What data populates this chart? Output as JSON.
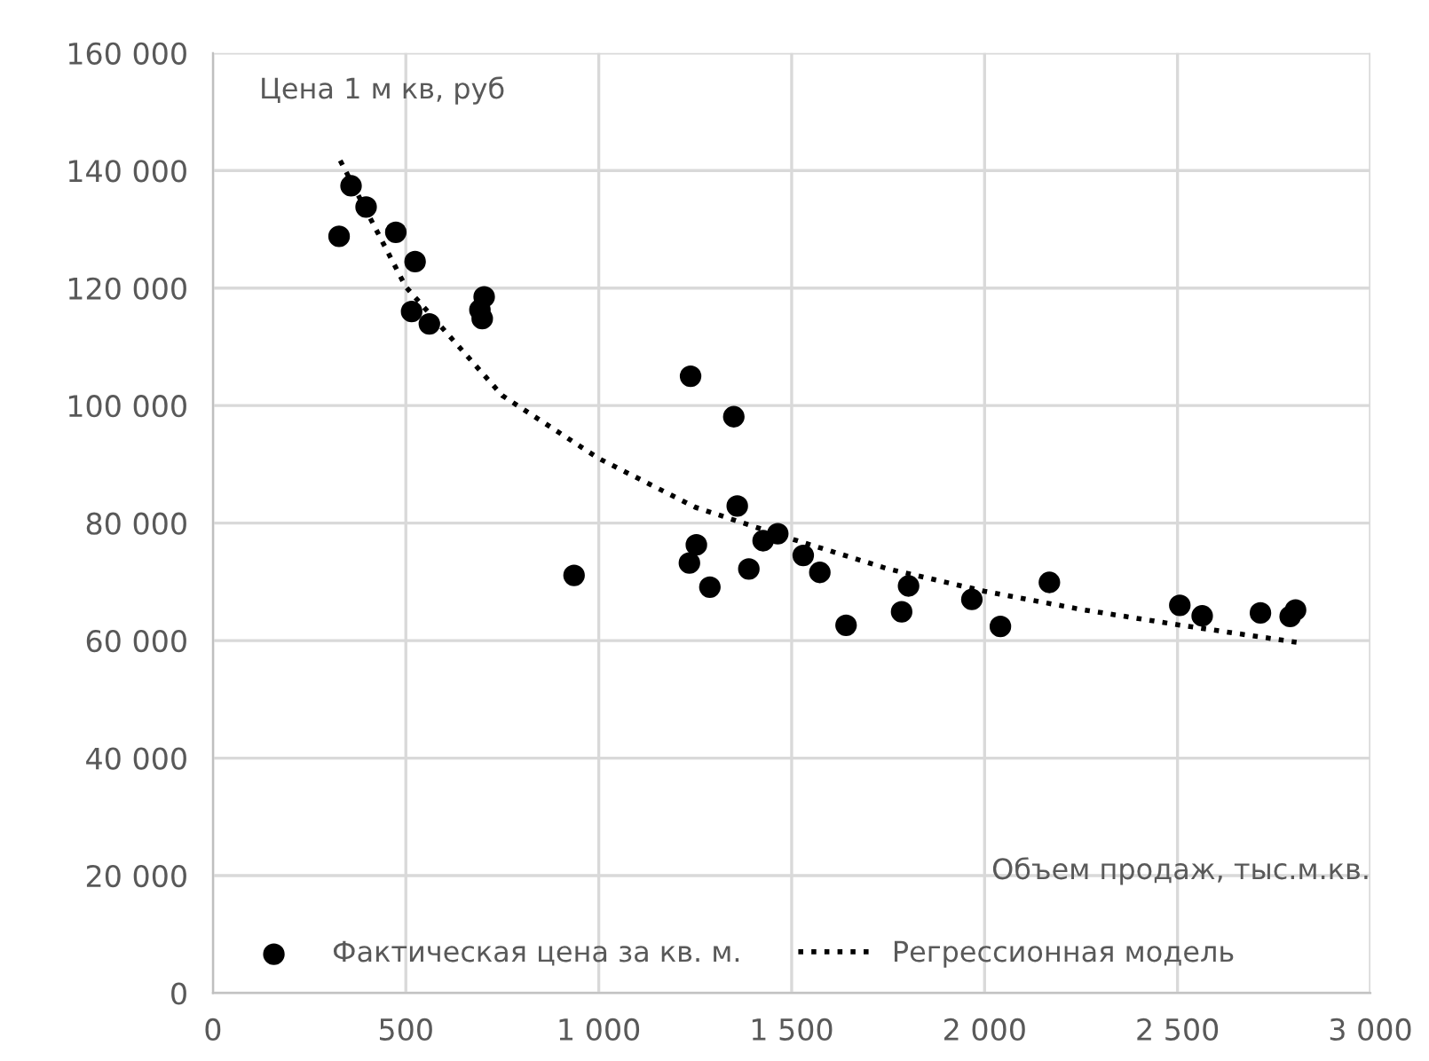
{
  "chart_data": {
    "type": "scatter",
    "xlabel": "Объем продаж, тыс.м.кв.",
    "ylabel": "Цена 1 м кв, руб",
    "xlim": [
      0,
      3000
    ],
    "ylim": [
      0,
      160000
    ],
    "xticks": [
      0,
      {
        "value": 500,
        "label": "500"
      },
      {
        "value": 1000,
        "label": "1 000"
      },
      {
        "value": 1500,
        "label": "1 500"
      },
      {
        "value": 2000,
        "label": "2 000"
      },
      {
        "value": 2500,
        "label": "2 500"
      },
      {
        "value": 3000,
        "label": "3 000"
      }
    ],
    "yticks": [
      0,
      {
        "value": 20000,
        "label": "20 000"
      },
      {
        "value": 40000,
        "label": "40 000"
      },
      {
        "value": 60000,
        "label": "60 000"
      },
      {
        "value": 80000,
        "label": "80 000"
      },
      {
        "value": 100000,
        "label": "100 000"
      },
      {
        "value": 120000,
        "label": "120 000"
      },
      {
        "value": 140000,
        "label": "140 000"
      },
      {
        "value": 160000,
        "label": "160 000"
      }
    ],
    "grid": true,
    "legend": "bottom",
    "series": [
      {
        "name": "Фактическая цена за кв. м.",
        "marker": "circle",
        "color": "#000000",
        "x": [
          327,
          358,
          397,
          474,
          524,
          515,
          561,
          703,
          692,
          698,
          936,
          1238,
          1350,
          1359,
          1253,
          1235,
          1288,
          1389,
          1426,
          1464,
          1530,
          1573,
          1641,
          1785,
          1803,
          1967,
          2041,
          2168,
          2506,
          2564,
          2715,
          2792,
          2806
        ],
        "values": [
          128800,
          137400,
          133800,
          129500,
          124500,
          116000,
          113900,
          118500,
          116300,
          114800,
          71100,
          105000,
          98100,
          82900,
          76300,
          73200,
          69100,
          72200,
          77000,
          78200,
          74500,
          71600,
          62600,
          64900,
          69300,
          67000,
          62400,
          69900,
          66000,
          64200,
          64700,
          64100,
          65200
        ]
      },
      {
        "name": "Регрессионная модель",
        "type": "line",
        "line_style": "dotted",
        "color": "#000000",
        "x": [
          330,
          500,
          750,
          1000,
          1250,
          1500,
          1750,
          2000,
          2250,
          2500,
          2810
        ],
        "values": [
          141700,
          120200,
          101700,
          91000,
          82700,
          77300,
          72200,
          68400,
          65300,
          62700,
          59700
        ]
      }
    ]
  }
}
